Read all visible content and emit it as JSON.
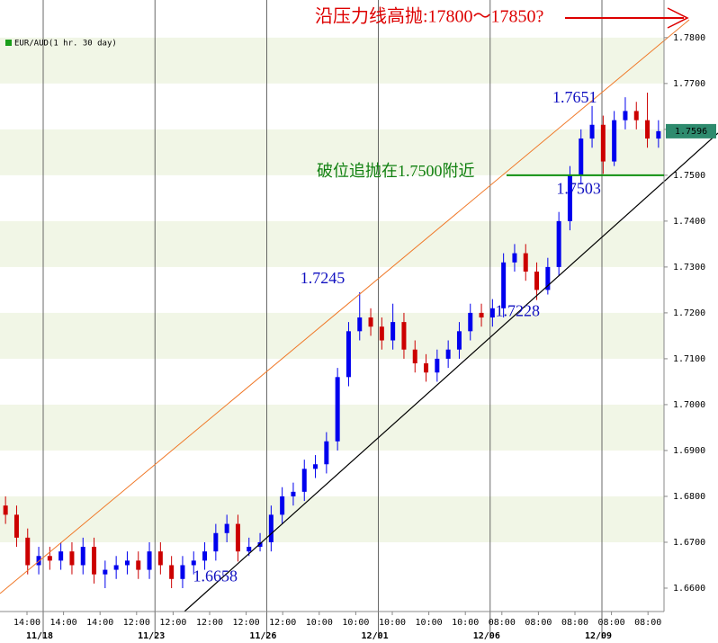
{
  "chart_data": {
    "type": "candlestick",
    "title": "沿压力线高抛:17800～17850?",
    "legend": "EUR/AUD(1 hr.  30 day)",
    "annotation": "破位追抛在1.7500附近",
    "up_color": "#0000ee",
    "down_color": "#cc0000",
    "last_price": 1.7596,
    "ylim": [
      1.6549,
      1.7882
    ],
    "yticks": [
      {
        "value": 1.66,
        "label": "1.6600"
      },
      {
        "value": 1.67,
        "label": "1.6700"
      },
      {
        "value": 1.68,
        "label": "1.6800"
      },
      {
        "value": 1.69,
        "label": "1.6900"
      },
      {
        "value": 1.7,
        "label": "1.7000"
      },
      {
        "value": 1.71,
        "label": "1.7100"
      },
      {
        "value": 1.72,
        "label": "1.7200"
      },
      {
        "value": 1.73,
        "label": "1.7300"
      },
      {
        "value": 1.74,
        "label": "1.7400"
      },
      {
        "value": 1.75,
        "label": "1.7500"
      },
      {
        "value": 1.76,
        "label": "1.7600"
      },
      {
        "value": 1.77,
        "label": "1.7700"
      },
      {
        "value": 1.78,
        "label": "1.7800"
      }
    ],
    "x_labels": [
      "14:00",
      "14:00",
      "14:00",
      "12:00",
      "12:00",
      "12:00",
      "12:00",
      "12:00",
      "10:00",
      "10:00",
      "10:00",
      "10:00",
      "10:00",
      "08:00",
      "08:00",
      "08:00",
      "08:00",
      "08:00"
    ],
    "date_labels": [
      "11/18",
      "11/23",
      "11/26",
      "12/01",
      "12/06",
      "12/09"
    ],
    "open": [
      1.678,
      1.676,
      1.671,
      1.665,
      1.667,
      1.666,
      1.668,
      1.665,
      1.669,
      1.663,
      1.664,
      1.665,
      1.666,
      1.664,
      1.668,
      1.665,
      1.662,
      1.665,
      1.666,
      1.668,
      1.672,
      1.674,
      1.668,
      1.669,
      1.67,
      1.676,
      1.68,
      1.681,
      1.686,
      1.687,
      1.692,
      1.706,
      1.716,
      1.719,
      1.717,
      1.714,
      1.718,
      1.712,
      1.709,
      1.707,
      1.71,
      1.712,
      1.716,
      1.72,
      1.719,
      1.721,
      1.731,
      1.733,
      1.729,
      1.725,
      1.73,
      1.74,
      1.75,
      1.758,
      1.761,
      1.753,
      1.762,
      1.764,
      1.762,
      1.758
    ],
    "high": [
      1.68,
      1.678,
      1.673,
      1.669,
      1.669,
      1.67,
      1.67,
      1.671,
      1.671,
      1.666,
      1.667,
      1.668,
      1.668,
      1.67,
      1.67,
      1.667,
      1.667,
      1.668,
      1.67,
      1.674,
      1.676,
      1.676,
      1.671,
      1.672,
      1.678,
      1.682,
      1.683,
      1.688,
      1.689,
      1.694,
      1.708,
      1.718,
      1.7245,
      1.721,
      1.719,
      1.722,
      1.72,
      1.714,
      1.711,
      1.712,
      1.714,
      1.718,
      1.722,
      1.722,
      1.723,
      1.733,
      1.735,
      1.735,
      1.731,
      1.732,
      1.742,
      1.752,
      1.76,
      1.7651,
      1.763,
      1.764,
      1.767,
      1.766,
      1.768,
      1.762
    ],
    "low": [
      1.674,
      1.669,
      1.663,
      1.663,
      1.664,
      1.664,
      1.663,
      1.663,
      1.661,
      1.66,
      1.662,
      1.663,
      1.662,
      1.662,
      1.663,
      1.66,
      1.66,
      1.663,
      1.664,
      1.666,
      1.67,
      1.6658,
      1.667,
      1.668,
      1.668,
      1.674,
      1.678,
      1.679,
      1.684,
      1.685,
      1.69,
      1.704,
      1.714,
      1.715,
      1.712,
      1.712,
      1.71,
      1.707,
      1.705,
      1.705,
      1.708,
      1.71,
      1.714,
      1.717,
      1.717,
      1.719,
      1.729,
      1.727,
      1.7228,
      1.724,
      1.728,
      1.738,
      1.748,
      1.756,
      1.7503,
      1.752,
      1.76,
      1.76,
      1.756,
      1.756
    ],
    "close": [
      1.676,
      1.671,
      1.665,
      1.667,
      1.666,
      1.668,
      1.665,
      1.669,
      1.663,
      1.664,
      1.665,
      1.666,
      1.664,
      1.668,
      1.665,
      1.662,
      1.665,
      1.666,
      1.668,
      1.672,
      1.674,
      1.668,
      1.669,
      1.67,
      1.676,
      1.68,
      1.681,
      1.686,
      1.687,
      1.692,
      1.706,
      1.716,
      1.719,
      1.717,
      1.714,
      1.718,
      1.712,
      1.709,
      1.707,
      1.71,
      1.712,
      1.716,
      1.72,
      1.719,
      1.721,
      1.731,
      1.733,
      1.729,
      1.725,
      1.73,
      1.74,
      1.75,
      1.758,
      1.761,
      1.753,
      1.762,
      1.764,
      1.762,
      1.758,
      1.7596
    ]
  }
}
